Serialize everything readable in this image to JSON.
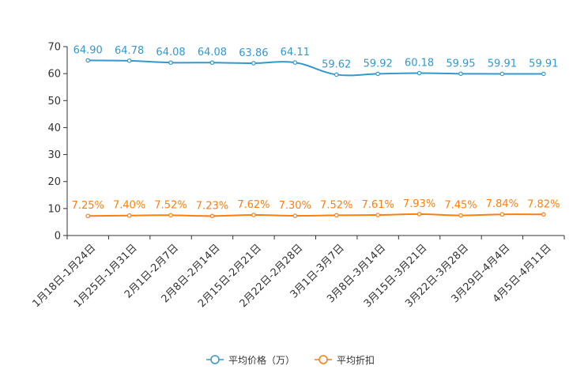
{
  "chart_data": {
    "type": "line",
    "title": "",
    "xlabel": "",
    "ylabel": "",
    "ylim": [
      0,
      70
    ],
    "yticks": [
      0,
      10,
      20,
      30,
      40,
      50,
      60,
      70
    ],
    "grid": false,
    "legend_position": "bottom-center",
    "categories": [
      "1月18日-1月24日",
      "1月25日-1月31日",
      "2月1日-2月7日",
      "2月8日-2月14日",
      "2月15日-2月21日",
      "2月22日-2月28日",
      "3月1日-3月7日",
      "3月8日-3月14日",
      "3月15日-3月21日",
      "3月22日-3月28日",
      "3月29日-4月4日",
      "4月5日-4月11日"
    ],
    "series": [
      {
        "name": "平均价格（万）",
        "color": "#3399cc",
        "values": [
          64.9,
          64.78,
          64.08,
          64.08,
          63.86,
          64.11,
          59.62,
          59.92,
          60.18,
          59.95,
          59.91,
          59.91
        ],
        "labels": [
          "64.90",
          "64.78",
          "64.08",
          "64.08",
          "63.86",
          "64.11",
          "59.62",
          "59.92",
          "60.18",
          "59.95",
          "59.91",
          "59.91"
        ]
      },
      {
        "name": "平均折扣",
        "color": "#ff7f0e",
        "values": [
          7.25,
          7.4,
          7.52,
          7.23,
          7.62,
          7.3,
          7.52,
          7.61,
          7.93,
          7.45,
          7.84,
          7.82
        ],
        "labels": [
          "7.25%",
          "7.40%",
          "7.52%",
          "7.23%",
          "7.62%",
          "7.30%",
          "7.52%",
          "7.61%",
          "7.93%",
          "7.45%",
          "7.84%",
          "7.82%"
        ]
      }
    ]
  }
}
